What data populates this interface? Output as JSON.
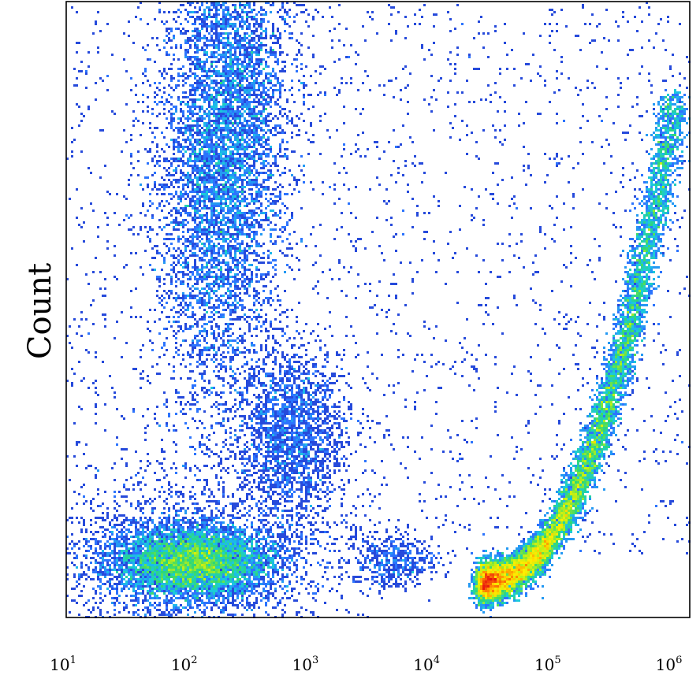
{
  "chart_data": {
    "type": "heatmap",
    "subtype": "density-scatter",
    "title": "",
    "xlabel": "",
    "ylabel": "Count",
    "x_scale": "log",
    "xlim": [
      10,
      1400000
    ],
    "x_ticks": [
      {
        "base": "10",
        "exp": "1",
        "value": 10
      },
      {
        "base": "10",
        "exp": "2",
        "value": 100
      },
      {
        "base": "10",
        "exp": "3",
        "value": 1000
      },
      {
        "base": "10",
        "exp": "4",
        "value": 10000
      },
      {
        "base": "10",
        "exp": "5",
        "value": 100000
      },
      {
        "base": "10",
        "exp": "6",
        "value": 1000000
      }
    ],
    "y_ticks_shown": false,
    "grid": false,
    "legend": "none",
    "colormap": [
      "#1a1aa8",
      "#2e6cff",
      "#19c8e6",
      "#2fd873",
      "#b6ef1a",
      "#ffee00",
      "#ff8c00",
      "#e81010"
    ],
    "populations": [
      {
        "label": "",
        "x_center": 200,
        "y_level": 0.77,
        "density": "medium"
      },
      {
        "label": "",
        "x_center": 110,
        "y_level": 0.09,
        "density": "high"
      },
      {
        "label": "",
        "x_center": 700,
        "y_level": 0.3,
        "density": "low"
      },
      {
        "label": "",
        "x_center": 5000,
        "y_level": 0.09,
        "density": "low"
      },
      {
        "label": "",
        "x_center": 90000,
        "y_level": 0.07,
        "density": "very-high"
      }
    ]
  }
}
